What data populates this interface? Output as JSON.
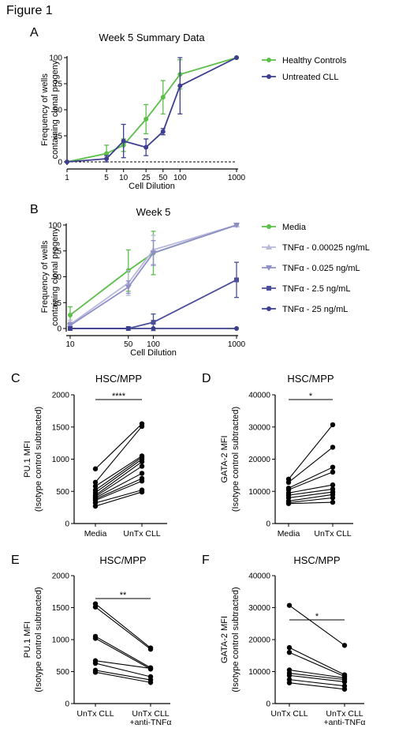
{
  "figure_title": "Figure 1",
  "colors": {
    "green": "#5cbf4a",
    "navy": "#3d3f8e",
    "lavender1": "#b8b8dc",
    "lavender2": "#8f8fc8",
    "slate": "#4b4f98",
    "black": "#000000"
  },
  "chart_data": [
    {
      "panel": "A",
      "type": "line",
      "title": "Week 5 Summary Data",
      "xlabel": "Cell Dilution",
      "ylabel": "Frequency of wells\ncontaining clonal progeny",
      "x_scale": "log",
      "xlim": [
        1,
        1000
      ],
      "ylim": [
        0,
        100
      ],
      "x_ticks": [
        1,
        5,
        10,
        25,
        50,
        100,
        1000
      ],
      "y_ticks": [
        0,
        25,
        50,
        75,
        100
      ],
      "reference_line_y": 0,
      "legend_position": "right",
      "series": [
        {
          "name": "Healthy Controls",
          "color": "#5cbf4a",
          "marker": "circle",
          "x": [
            1,
            5,
            10,
            25,
            50,
            100,
            1000
          ],
          "y": [
            0,
            8,
            16,
            41,
            62,
            84,
            100
          ],
          "err": [
            0,
            8,
            6,
            14,
            16,
            14,
            0
          ]
        },
        {
          "name": "Untreated CLL",
          "color": "#3d3f8e",
          "marker": "circle",
          "x": [
            1,
            5,
            10,
            25,
            50,
            100,
            1000
          ],
          "y": [
            0,
            3,
            20,
            14,
            29,
            73,
            100
          ],
          "err": [
            0,
            3,
            16,
            8,
            3,
            27,
            0
          ]
        }
      ]
    },
    {
      "panel": "B",
      "type": "line",
      "title": "Week 5",
      "xlabel": "Cell Dilution",
      "ylabel": "Frequency of wells\ncontaining clonal progeny",
      "x_scale": "log",
      "xlim": [
        10,
        1000
      ],
      "ylim": [
        0,
        100
      ],
      "x_ticks": [
        10,
        50,
        100,
        1000
      ],
      "y_ticks": [
        0,
        25,
        50,
        75,
        100
      ],
      "legend_position": "right",
      "series": [
        {
          "name": "Media",
          "color": "#5cbf4a",
          "marker": "circle",
          "x": [
            10,
            50,
            100,
            1000
          ],
          "y": [
            13,
            56,
            73,
            100
          ],
          "err": [
            8,
            20,
            21,
            0
          ]
        },
        {
          "name": "TNFα - 0.00025 ng/mL",
          "color": "#b8b8dc",
          "marker": "triangle-up",
          "x": [
            10,
            50,
            100,
            1000
          ],
          "y": [
            4,
            44,
            76,
            100
          ],
          "err": [
            4,
            12,
            14,
            0
          ]
        },
        {
          "name": "TNFα - 0.025 ng/mL",
          "color": "#8f8fc8",
          "marker": "triangle-down",
          "x": [
            10,
            50,
            100,
            1000
          ],
          "y": [
            3,
            40,
            73,
            100
          ],
          "err": [
            3,
            6,
            12,
            0
          ]
        },
        {
          "name": "TNFα - 2.5 ng/mL",
          "color": "#4b4f98",
          "marker": "square",
          "x": [
            10,
            50,
            100,
            1000
          ],
          "y": [
            0,
            0,
            6,
            47
          ],
          "err": [
            0,
            0,
            8,
            17
          ]
        },
        {
          "name": "TNFα - 25 ng/mL",
          "color": "#3d3f8e",
          "marker": "circle",
          "x": [
            10,
            50,
            100,
            1000
          ],
          "y": [
            0,
            0,
            0,
            0
          ],
          "err": [
            0,
            0,
            0,
            0
          ]
        }
      ]
    },
    {
      "panel": "C",
      "type": "scatter",
      "subtype": "paired",
      "title": "HSC/MPP",
      "ylabel": "PU.1 MFI\n(Isotype control subtracted)",
      "ylim": [
        0,
        2000
      ],
      "y_ticks": [
        0,
        500,
        1000,
        1500,
        2000
      ],
      "categories": [
        "Media",
        "UnTx CLL"
      ],
      "significance": "****",
      "pairs": [
        [
          850,
          1550
        ],
        [
          640,
          1510
        ],
        [
          580,
          1050
        ],
        [
          520,
          1030
        ],
        [
          480,
          1000
        ],
        [
          440,
          960
        ],
        [
          420,
          890
        ],
        [
          400,
          780
        ],
        [
          380,
          700
        ],
        [
          360,
          660
        ],
        [
          320,
          520
        ],
        [
          270,
          490
        ]
      ]
    },
    {
      "panel": "D",
      "type": "scatter",
      "subtype": "paired",
      "title": "HSC/MPP",
      "ylabel": "GATA-2 MFI\n(Isotype control subtracted)",
      "ylim": [
        0,
        40000
      ],
      "y_ticks": [
        0,
        10000,
        20000,
        30000,
        40000
      ],
      "categories": [
        "Media",
        "UnTx CLL"
      ],
      "significance": "*",
      "pairs": [
        [
          13800,
          30700
        ],
        [
          12800,
          23700
        ],
        [
          11000,
          17500
        ],
        [
          10500,
          16000
        ],
        [
          9500,
          12000
        ],
        [
          8800,
          10700
        ],
        [
          8000,
          9800
        ],
        [
          7000,
          9000
        ],
        [
          6500,
          8000
        ],
        [
          6200,
          6600
        ]
      ]
    },
    {
      "panel": "E",
      "type": "scatter",
      "subtype": "paired",
      "title": "HSC/MPP",
      "ylabel": "PU.1 MFI\n(Isotype control subtracted)",
      "ylim": [
        0,
        2000
      ],
      "y_ticks": [
        0,
        500,
        1000,
        1500,
        2000
      ],
      "categories": [
        "UnTx CLL",
        "UnTx CLL\n+anti-TNFα"
      ],
      "significance": "**",
      "pairs": [
        [
          1560,
          870
        ],
        [
          1510,
          850
        ],
        [
          1050,
          560
        ],
        [
          1020,
          540
        ],
        [
          670,
          550
        ],
        [
          630,
          420
        ],
        [
          520,
          370
        ],
        [
          490,
          330
        ]
      ]
    },
    {
      "panel": "F",
      "type": "scatter",
      "subtype": "paired",
      "title": "HSC/MPP",
      "ylabel": "GATA-2 MFI\n(Isotype control subtracted)",
      "ylim": [
        0,
        40000
      ],
      "y_ticks": [
        0,
        10000,
        20000,
        30000,
        40000
      ],
      "categories": [
        "UnTx CLL",
        "UnTx CLL\n+anti-TNFα"
      ],
      "significance": "*",
      "pairs": [
        [
          30700,
          18200
        ],
        [
          17500,
          9000
        ],
        [
          16000,
          8500
        ],
        [
          10500,
          8000
        ],
        [
          9500,
          7500
        ],
        [
          8800,
          6800
        ],
        [
          7500,
          5500
        ],
        [
          6500,
          4500
        ]
      ]
    }
  ]
}
